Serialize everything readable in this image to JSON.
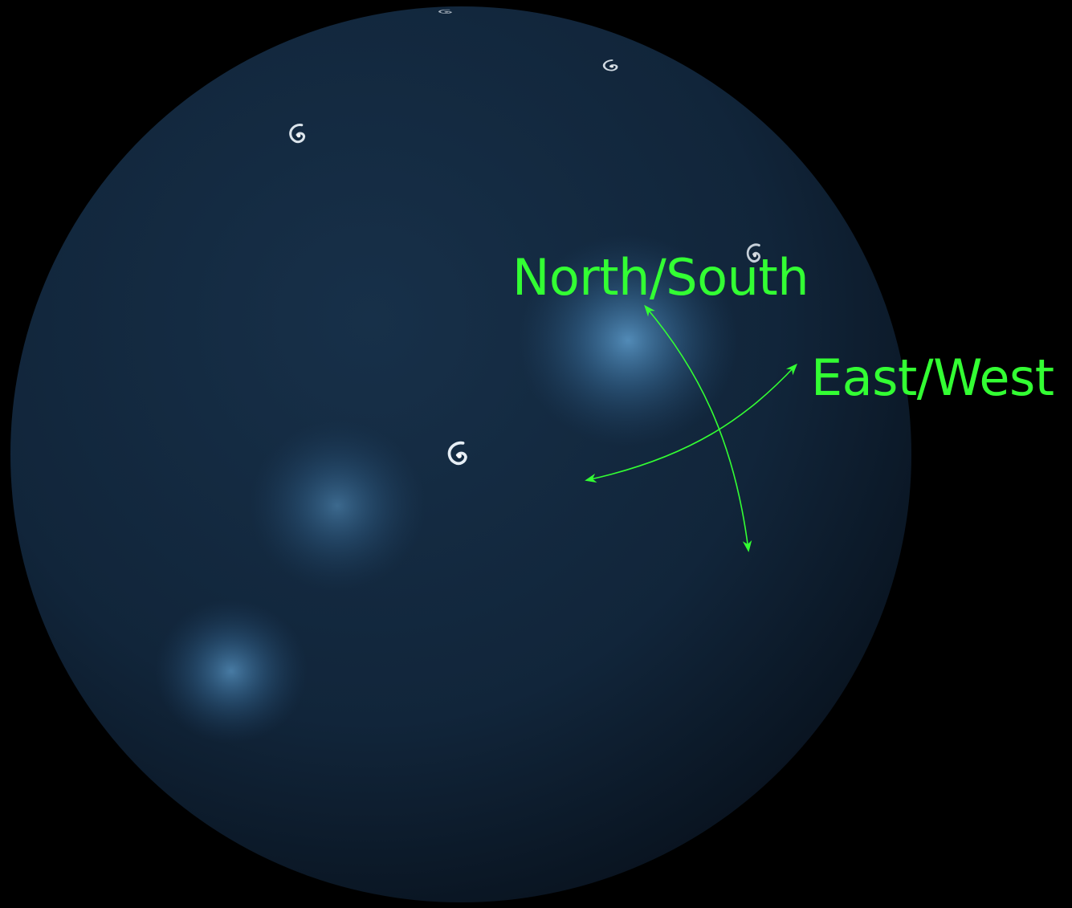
{
  "labels": {
    "north_south": "North/South",
    "east_west": "East/West"
  },
  "colors": {
    "background": "#000000",
    "sphere_light": "#173049",
    "sphere_mid": "#11253a",
    "sphere_dark": "#070f19",
    "glow": "#5d9ccc",
    "annotation": "#33ff33",
    "galaxy": "#e6eef5"
  },
  "icons": {
    "galaxy": "spiral-galaxy-icon",
    "arrow": "double-headed-arrow"
  }
}
